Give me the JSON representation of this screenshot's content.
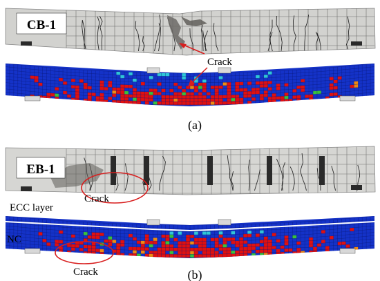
{
  "panel_a": {
    "specimen_label": "CB-1",
    "photo_crack_label": "Crack",
    "caption": "(a)"
  },
  "panel_b": {
    "specimen_label": "EB-1",
    "photo_crack_label": "Crack",
    "layer_top_label": "ECC layer",
    "layer_bottom_label": "NC",
    "fem_crack_label": "Crack",
    "caption": "(b)"
  },
  "colors": {
    "concrete_photo": "#d2d2cf",
    "grid_line": "#4a4a4a",
    "fem_background": "#1432c8",
    "fem_mesh": "#0a1a7a",
    "crack_red": "#e01010",
    "crack_orange": "#f08a10",
    "crack_green": "#39c23a",
    "crack_cyan": "#2fc6d8",
    "annotation_red": "#d81e1e",
    "steel_plate": "#2a2a2a",
    "ecc_interface": "#ffffff"
  }
}
